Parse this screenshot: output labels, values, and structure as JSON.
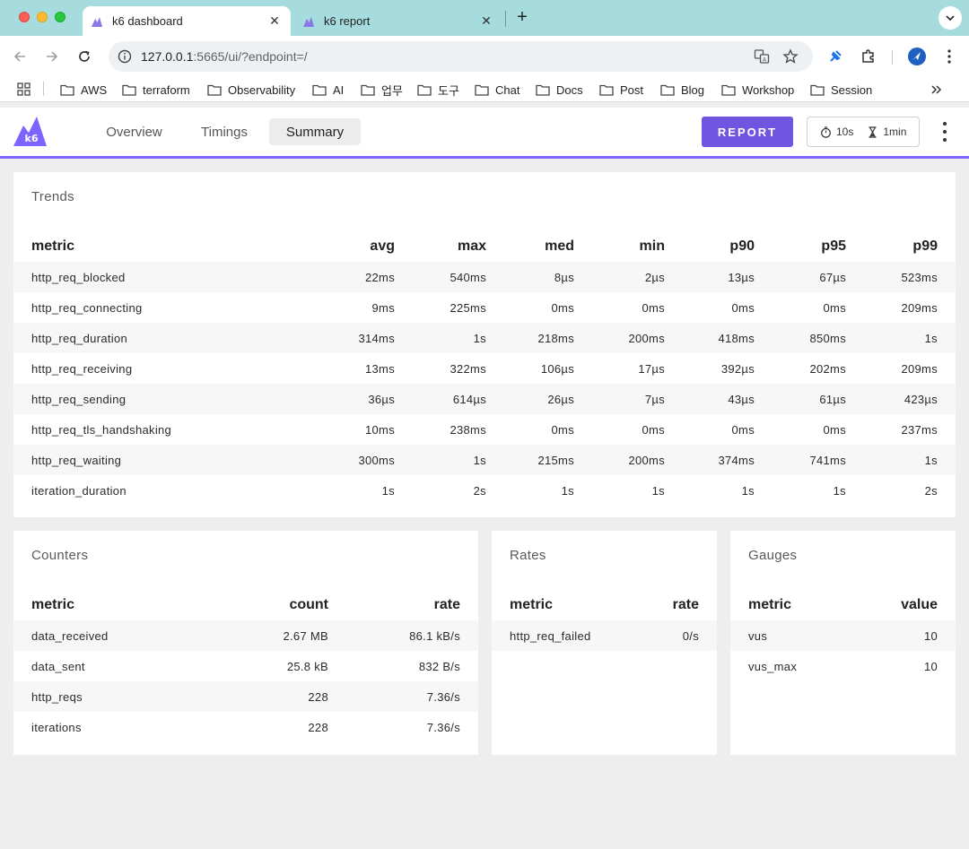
{
  "browser": {
    "tabs": [
      {
        "title": "k6 dashboard",
        "active": true
      },
      {
        "title": "k6 report",
        "active": false
      }
    ],
    "url": {
      "host": "127.0.0.1",
      "rest": ":5665/ui/?endpoint=/"
    },
    "bookmarks": [
      "AWS",
      "terraform",
      "Observability",
      "AI",
      "업무",
      "도구",
      "Chat",
      "Docs",
      "Post",
      "Blog",
      "Workshop",
      "Session"
    ],
    "accent": "#a6dcdd"
  },
  "app": {
    "logo_text": "k6",
    "nav": [
      "Overview",
      "Timings",
      "Summary"
    ],
    "selected_nav": "Summary",
    "report_label": "REPORT",
    "period": "10s",
    "range": "1min",
    "accent": "#7d64ff"
  },
  "trends": {
    "title": "Trends",
    "columns": [
      "metric",
      "avg",
      "max",
      "med",
      "min",
      "p90",
      "p95",
      "p99"
    ],
    "rows": [
      [
        "http_req_blocked",
        "22ms",
        "540ms",
        "8µs",
        "2µs",
        "13µs",
        "67µs",
        "523ms"
      ],
      [
        "http_req_connecting",
        "9ms",
        "225ms",
        "0ms",
        "0ms",
        "0ms",
        "0ms",
        "209ms"
      ],
      [
        "http_req_duration",
        "314ms",
        "1s",
        "218ms",
        "200ms",
        "418ms",
        "850ms",
        "1s"
      ],
      [
        "http_req_receiving",
        "13ms",
        "322ms",
        "106µs",
        "17µs",
        "392µs",
        "202ms",
        "209ms"
      ],
      [
        "http_req_sending",
        "36µs",
        "614µs",
        "26µs",
        "7µs",
        "43µs",
        "61µs",
        "423µs"
      ],
      [
        "http_req_tls_handshaking",
        "10ms",
        "238ms",
        "0ms",
        "0ms",
        "0ms",
        "0ms",
        "237ms"
      ],
      [
        "http_req_waiting",
        "300ms",
        "1s",
        "215ms",
        "200ms",
        "374ms",
        "741ms",
        "1s"
      ],
      [
        "iteration_duration",
        "1s",
        "2s",
        "1s",
        "1s",
        "1s",
        "1s",
        "2s"
      ]
    ]
  },
  "counters": {
    "title": "Counters",
    "columns": [
      "metric",
      "count",
      "rate"
    ],
    "rows": [
      [
        "data_received",
        "2.67 MB",
        "86.1 kB/s"
      ],
      [
        "data_sent",
        "25.8 kB",
        "832 B/s"
      ],
      [
        "http_reqs",
        "228",
        "7.36/s"
      ],
      [
        "iterations",
        "228",
        "7.36/s"
      ]
    ]
  },
  "rates": {
    "title": "Rates",
    "columns": [
      "metric",
      "rate"
    ],
    "rows": [
      [
        "http_req_failed",
        "0/s"
      ]
    ]
  },
  "gauges": {
    "title": "Gauges",
    "columns": [
      "metric",
      "value"
    ],
    "rows": [
      [
        "vus",
        "10"
      ],
      [
        "vus_max",
        "10"
      ]
    ]
  }
}
